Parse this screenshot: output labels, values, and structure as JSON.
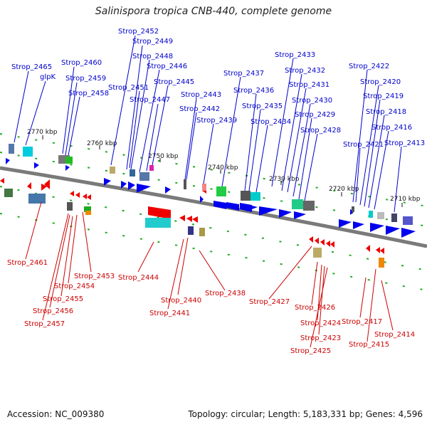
{
  "title": "Salinispora tropica CNB-440, complete genome",
  "footer": {
    "accession": "Accession: NC_009380",
    "summary": "Topology: circular; Length: 5,183,331 bp; Genes: 4,596"
  },
  "colors": {
    "forward": "#0000ee",
    "reverse": "#ee0000",
    "backbone": "#808080",
    "label_forward": "#0000cc",
    "label_reverse": "#cc0000"
  },
  "ruler_ticks": [
    "2770 kbp",
    "2760 kbp",
    "2750 kbp",
    "2740 kbp",
    "2730 kbp",
    "2720 kbp",
    "2710 kbp"
  ],
  "forward_labels": [
    "Strop_2465",
    "glpK",
    "Strop_2460",
    "Strop_2459",
    "Strop_2458",
    "Strop_2452",
    "Strop_2449",
    "Strop_2448",
    "Strop_2446",
    "Strop_2451",
    "Strop_2447",
    "Strop_2445",
    "Strop_2443",
    "Strop_2442",
    "Strop_2439",
    "Strop_2437",
    "Strop_2436",
    "Strop_2435",
    "Strop_2434",
    "Strop_2433",
    "Strop_2432",
    "Strop_2431",
    "Strop_2430",
    "Strop_2429",
    "Strop_2428",
    "Strop_2422",
    "Strop_2420",
    "Strop_2419",
    "Strop_2418",
    "Strop_2416",
    "Strop_2421",
    "Strop_2413"
  ],
  "reverse_labels": [
    "Strop_2461",
    "Strop_2453",
    "Strop_2454",
    "Strop_2455",
    "Strop_2456",
    "Strop_2457",
    "Strop_2444",
    "Strop_2440",
    "Strop_2441",
    "Strop_2438",
    "Strop_2427",
    "Strop_2426",
    "Strop_2424",
    "Strop_2423",
    "Strop_2425",
    "Strop_2417",
    "Strop_2415",
    "Strop_2414"
  ]
}
